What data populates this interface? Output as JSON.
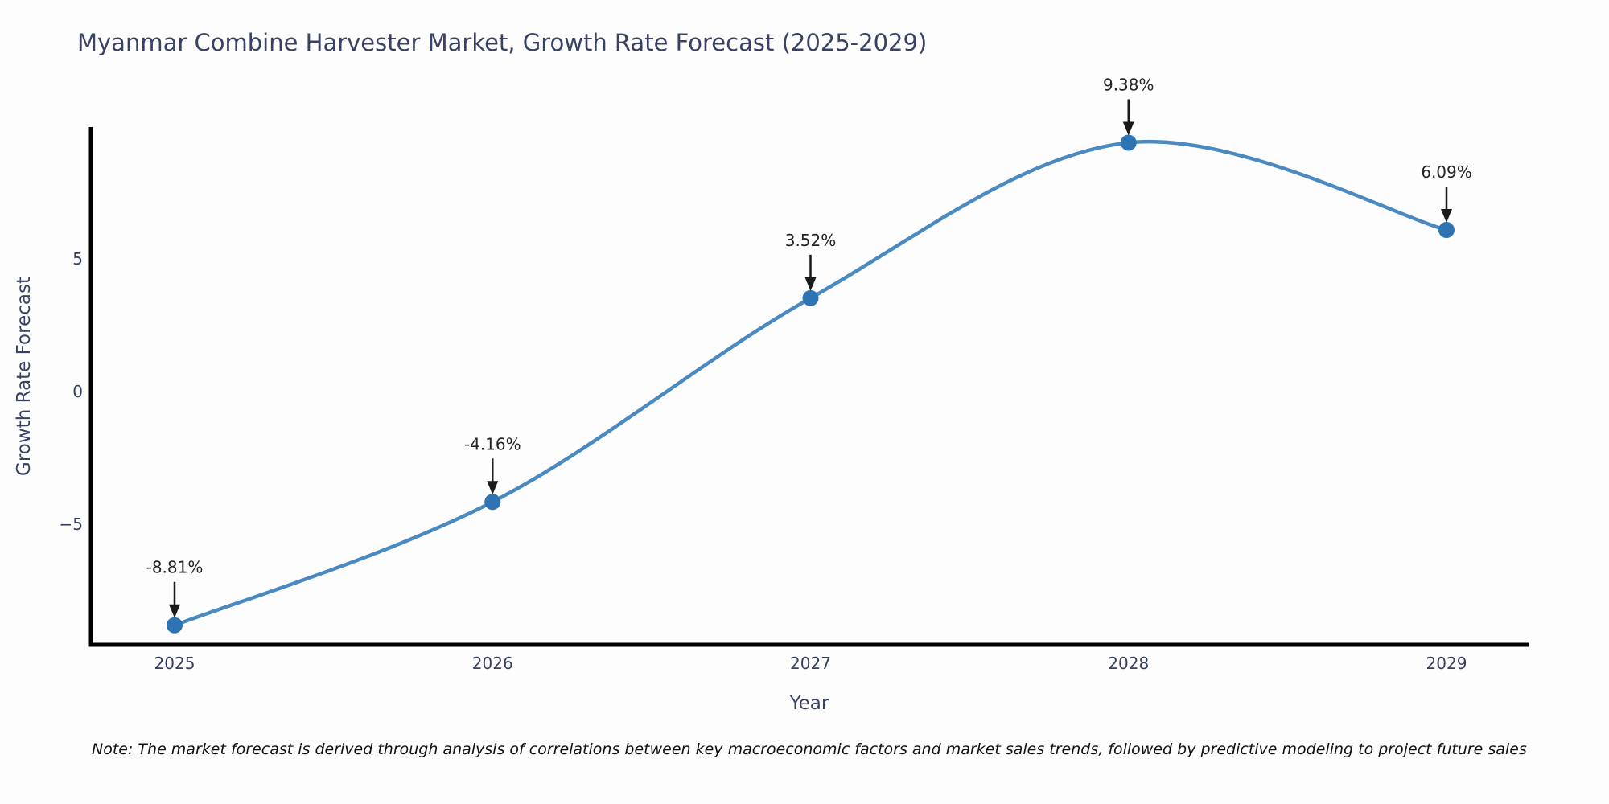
{
  "title": "Myanmar Combine Harvester Market, Growth Rate Forecast (2025-2029)",
  "note": "Note: The market forecast is derived through analysis of correlations between key macroeconomic factors and market sales trends, followed by predictive modeling to project future sales",
  "chart_data": {
    "type": "line",
    "title": "Myanmar Combine Harvester Market, Growth Rate Forecast (2025-2029)",
    "xlabel": "Year",
    "ylabel": "Growth Rate Forecast",
    "x": [
      2025,
      2026,
      2027,
      2028,
      2029
    ],
    "x_ticks": [
      "2025",
      "2026",
      "2027",
      "2028",
      "2029"
    ],
    "series": [
      {
        "name": "Growth Rate Forecast",
        "values": [
          -8.81,
          -4.16,
          3.52,
          9.38,
          6.09
        ]
      }
    ],
    "point_labels": [
      "-8.81%",
      "-4.16%",
      "3.52%",
      "9.38%",
      "6.09%"
    ],
    "y_ticks": [
      {
        "value": 5,
        "label": "5"
      },
      {
        "value": 0,
        "label": "0"
      },
      {
        "value": -5,
        "label": "−5"
      }
    ],
    "ylim": [
      -9.6,
      10.0
    ],
    "grid": false,
    "legend": "none",
    "line_shape": "spline",
    "annotation_arrows": true,
    "colors": {
      "line": "#4a8ac1",
      "marker": "#2e74b2",
      "axis_line": "#000000",
      "title_text": "#394264",
      "tick_text": "#34405f",
      "annotation_text": "#242424",
      "arrow": "#1a1a1a",
      "note_text": "#111111",
      "background": "#fdfdfd"
    }
  }
}
